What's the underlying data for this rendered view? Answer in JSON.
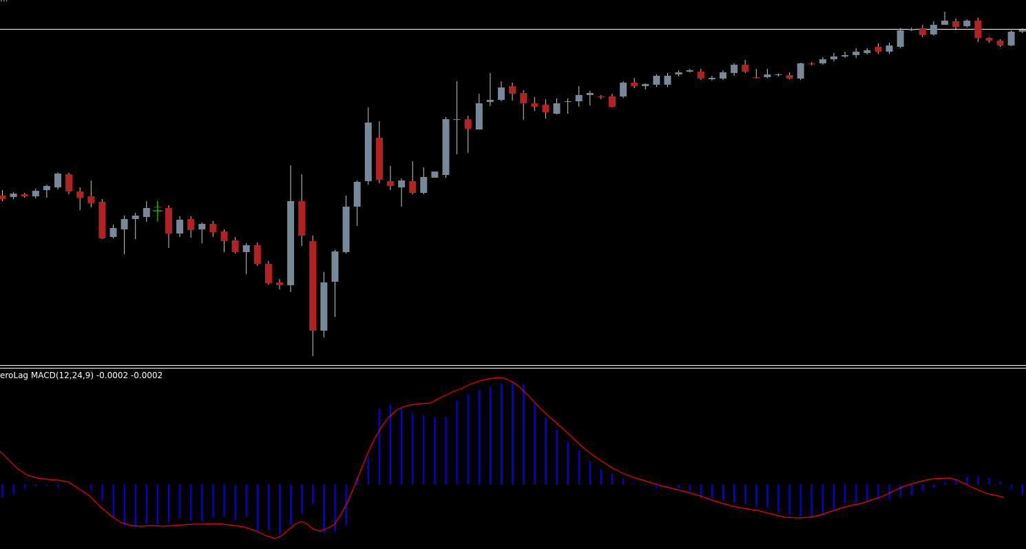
{
  "colors": {
    "background": "#000000",
    "bull_candle": "#778899",
    "bear_candle": "#b22222",
    "wick": "#cccccc",
    "separator": "#ffffff",
    "price_line": "#ffffff",
    "histogram": "#0000ff",
    "signal_line": "#ff0000",
    "crosshair": "#00ff00"
  },
  "header": {
    "top_label": "..."
  },
  "indicator": {
    "label": "eroLag MACD(12,24,9) -0.0002 -0.0002"
  },
  "chart_data": [
    {
      "type": "candlestick",
      "title": "",
      "xlabel": "",
      "ylabel": "",
      "ylim": [
        0,
        540
      ],
      "horizontal_line": 42,
      "crosshair_candle": 14,
      "candles": [
        [
          284,
          289,
          276,
          292
        ],
        [
          286,
          281,
          279,
          289
        ],
        [
          282,
          285,
          280,
          287
        ],
        [
          285,
          277,
          274,
          288
        ],
        [
          276,
          270,
          268,
          287
        ],
        [
          272,
          252,
          250,
          275
        ],
        [
          253,
          278,
          251,
          282
        ],
        [
          278,
          287,
          272,
          305
        ],
        [
          285,
          295,
          262,
          301
        ],
        [
          293,
          346,
          289,
          347
        ],
        [
          344,
          331,
          326,
          346
        ],
        [
          333,
          318,
          313,
          369
        ],
        [
          318,
          313,
          309,
          347
        ],
        [
          315,
          302,
          292,
          322
        ],
        [
          300,
          301,
          292,
          304
        ],
        [
          302,
          339,
          298,
          360
        ],
        [
          339,
          319,
          314,
          344
        ],
        [
          318,
          334,
          314,
          345
        ],
        [
          333,
          325,
          323,
          353
        ],
        [
          325,
          337,
          321,
          344
        ],
        [
          336,
          350,
          333,
          366
        ],
        [
          349,
          366,
          344,
          368
        ],
        [
          366,
          356,
          353,
          398
        ],
        [
          356,
          383,
          352,
          386
        ],
        [
          383,
          411,
          379,
          413
        ],
        [
          410,
          414,
          405,
          420
        ],
        [
          414,
          292,
          240,
          424
        ],
        [
          292,
          342,
          253,
          357
        ],
        [
          350,
          480,
          342,
          517
        ],
        [
          480,
          410,
          395,
          490
        ],
        [
          409,
          365,
          363,
          460
        ],
        [
          366,
          300,
          284,
          368
        ],
        [
          300,
          264,
          262,
          328
        ],
        [
          263,
          178,
          156,
          268
        ],
        [
          200,
          261,
          176,
          266
        ],
        [
          263,
          270,
          241,
          276
        ],
        [
          272,
          262,
          259,
          300
        ],
        [
          263,
          280,
          234,
          282
        ],
        [
          280,
          257,
          243,
          282
        ],
        [
          258,
          249,
          249,
          255
        ],
        [
          254,
          173,
          170,
          258
        ],
        [
          174,
          173,
          118,
          224
        ],
        [
          173,
          187,
          168,
          222
        ],
        [
          188,
          150,
          136,
          187
        ],
        [
          148,
          145,
          106,
          154
        ],
        [
          145,
          127,
          118,
          147
        ],
        [
          125,
          136,
          120,
          146
        ],
        [
          135,
          150,
          131,
          174
        ],
        [
          150,
          155,
          141,
          161
        ],
        [
          152,
          163,
          144,
          172
        ],
        [
          165,
          150,
          143,
          166
        ],
        [
          148,
          147,
          143,
          165
        ],
        [
          147,
          138,
          125,
          155
        ],
        [
          138,
          135,
          132,
          153
        ],
        [
          140,
          141,
          138,
          144
        ],
        [
          140,
          155,
          136,
          156
        ],
        [
          140,
          120,
          118,
          142
        ],
        [
          120,
          125,
          113,
          128
        ],
        [
          125,
          122,
          121,
          130
        ],
        [
          123,
          110,
          108,
          126
        ],
        [
          123,
          110,
          106,
          126
        ],
        [
          108,
          105,
          102,
          111
        ],
        [
          104,
          102,
          100,
          105
        ],
        [
          104,
          114,
          100,
          116
        ],
        [
          115,
          113,
          110,
          117
        ],
        [
          114,
          105,
          102,
          116
        ],
        [
          106,
          94,
          92,
          110
        ],
        [
          94,
          104,
          87,
          106
        ],
        [
          112,
          113,
          100,
          114
        ],
        [
          112,
          108,
          100,
          113
        ],
        [
          109,
          108,
          107,
          111
        ],
        [
          109,
          114,
          105,
          115
        ],
        [
          114,
          92,
          91,
          116
        ],
        [
          92,
          93,
          90,
          95
        ],
        [
          92,
          86,
          83,
          94
        ],
        [
          86,
          82,
          77,
          89
        ],
        [
          82,
          80,
          75,
          84
        ],
        [
          80,
          75,
          70,
          84
        ],
        [
          77,
          73,
          70,
          79
        ],
        [
          68,
          75,
          63,
          78
        ],
        [
          75,
          66,
          62,
          78
        ],
        [
          68,
          44,
          41,
          70
        ],
        [
          44,
          42,
          40,
          45
        ],
        [
          41,
          51,
          36,
          54
        ],
        [
          50,
          36,
          31,
          52
        ],
        [
          36,
          30,
          17,
          34
        ],
        [
          31,
          39,
          27,
          44
        ],
        [
          38,
          30,
          28,
          40
        ],
        [
          30,
          55,
          26,
          61
        ],
        [
          55,
          59,
          54,
          62
        ],
        [
          59,
          66,
          57,
          68
        ],
        [
          66,
          46,
          44,
          67
        ],
        [
          46,
          43,
          41,
          48
        ]
      ]
    },
    {
      "type": "bar",
      "title": "",
      "xlabel": "",
      "ylabel": "",
      "ylim": [
        0,
        0.5
      ],
      "zero_line": 703,
      "histogram": [
        -19,
        -14,
        -6,
        -3,
        -2,
        -4,
        -1,
        0,
        -9,
        -22,
        -48,
        -60,
        -62,
        -58,
        -58,
        -55,
        -49,
        -53,
        -54,
        -48,
        -47,
        -52,
        -47,
        -69,
        -67,
        -73,
        -59,
        -42,
        -28,
        -70,
        -68,
        -60,
        10,
        40,
        110,
        115,
        112,
        103,
        100,
        98,
        98,
        121,
        131,
        137,
        142,
        146,
        148,
        145,
        118,
        97,
        79,
        61,
        49,
        33,
        22,
        15,
        8,
        2,
        -2,
        -6,
        -3,
        -6,
        -10,
        -19,
        -21,
        -23,
        -27,
        -29,
        -32,
        -34,
        -41,
        -44,
        -47,
        -47,
        -45,
        -37,
        -28,
        -27,
        -25,
        -22,
        -23,
        -19,
        -16,
        -10,
        -5,
        3,
        7,
        11,
        12,
        10,
        4,
        -6,
        -15,
        -26,
        -28,
        -28
      ],
      "signal": [
        [
          0,
          655
        ],
        [
          10,
          665
        ],
        [
          25,
          680
        ],
        [
          40,
          690
        ],
        [
          55,
          694
        ],
        [
          70,
          696
        ],
        [
          85,
          697
        ],
        [
          100,
          700
        ],
        [
          115,
          710
        ],
        [
          130,
          720
        ],
        [
          145,
          735
        ],
        [
          160,
          748
        ],
        [
          175,
          758
        ],
        [
          190,
          763
        ],
        [
          205,
          764
        ],
        [
          220,
          763
        ],
        [
          235,
          764
        ],
        [
          250,
          763
        ],
        [
          265,
          762
        ],
        [
          280,
          761
        ],
        [
          295,
          761
        ],
        [
          310,
          760
        ],
        [
          325,
          761
        ],
        [
          340,
          763
        ],
        [
          355,
          765
        ],
        [
          370,
          770
        ],
        [
          385,
          777
        ],
        [
          400,
          782
        ],
        [
          410,
          777
        ],
        [
          420,
          768
        ],
        [
          430,
          760
        ],
        [
          438,
          757
        ],
        [
          445,
          760
        ],
        [
          455,
          768
        ],
        [
          465,
          771
        ],
        [
          475,
          767
        ],
        [
          485,
          762
        ],
        [
          495,
          747
        ],
        [
          505,
          728
        ],
        [
          515,
          705
        ],
        [
          525,
          680
        ],
        [
          535,
          655
        ],
        [
          545,
          635
        ],
        [
          555,
          618
        ],
        [
          565,
          605
        ],
        [
          575,
          596
        ],
        [
          585,
          591
        ],
        [
          595,
          588
        ],
        [
          610,
          586
        ],
        [
          625,
          585
        ],
        [
          640,
          577
        ],
        [
          655,
          570
        ],
        [
          670,
          564
        ],
        [
          685,
          557
        ],
        [
          700,
          552
        ],
        [
          715,
          549
        ],
        [
          725,
          548
        ],
        [
          735,
          550
        ],
        [
          745,
          555
        ],
        [
          755,
          562
        ],
        [
          770,
          577
        ],
        [
          785,
          593
        ],
        [
          800,
          607
        ],
        [
          815,
          620
        ],
        [
          830,
          634
        ],
        [
          845,
          648
        ],
        [
          860,
          660
        ],
        [
          875,
          670
        ],
        [
          890,
          680
        ],
        [
          905,
          687
        ],
        [
          920,
          693
        ],
        [
          940,
          699
        ],
        [
          960,
          705
        ],
        [
          980,
          710
        ],
        [
          1000,
          715
        ],
        [
          1020,
          721
        ],
        [
          1040,
          728
        ],
        [
          1060,
          734
        ],
        [
          1080,
          738
        ],
        [
          1100,
          741
        ],
        [
          1120,
          746
        ],
        [
          1140,
          751
        ],
        [
          1160,
          752
        ],
        [
          1175,
          751
        ],
        [
          1190,
          748
        ],
        [
          1205,
          743
        ],
        [
          1220,
          738
        ],
        [
          1235,
          734
        ],
        [
          1250,
          731
        ],
        [
          1265,
          726
        ],
        [
          1280,
          721
        ],
        [
          1295,
          714
        ],
        [
          1310,
          707
        ],
        [
          1325,
          702
        ],
        [
          1340,
          698
        ],
        [
          1355,
          695
        ],
        [
          1370,
          694
        ],
        [
          1380,
          694
        ],
        [
          1390,
          697
        ],
        [
          1405,
          704
        ],
        [
          1420,
          711
        ],
        [
          1435,
          717
        ],
        [
          1450,
          720
        ],
        [
          1458,
          722
        ]
      ]
    }
  ]
}
